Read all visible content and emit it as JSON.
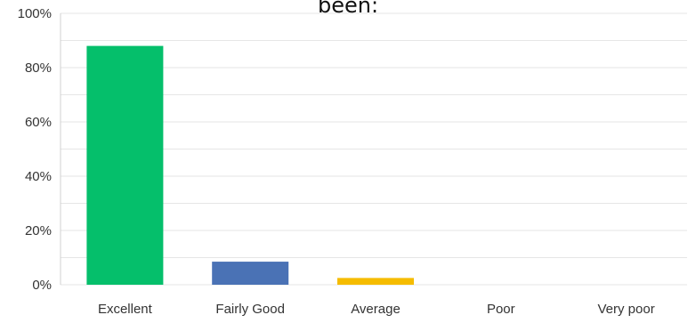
{
  "chart_data": {
    "type": "bar",
    "title": "been:",
    "categories": [
      "Excellent",
      "Fairly Good",
      "Average",
      "Poor",
      "Very poor"
    ],
    "values": [
      88,
      8.5,
      2.5,
      0,
      0
    ],
    "ylim": [
      0,
      100
    ],
    "y_ticks": [
      0,
      20,
      40,
      60,
      80,
      100
    ],
    "y_tick_labels": [
      "0%",
      "20%",
      "40%",
      "60%",
      "80%",
      "100%"
    ],
    "grid": true,
    "legend": "none",
    "bar_colors": [
      "#05bf6b",
      "#4a72b5",
      "#f5bc00",
      "#a5a5a5",
      "#a5a5a5"
    ],
    "grid_color": "#e6e6e6",
    "text_color": "#333333"
  }
}
